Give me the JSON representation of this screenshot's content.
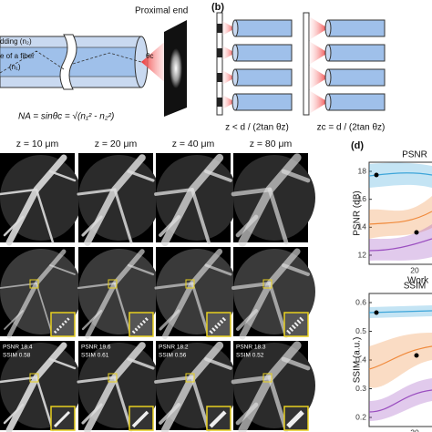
{
  "panel_a": {
    "top_label": "Proximal end",
    "cladding_label": "dding (n₂)",
    "core_label": "e of a fiber",
    "core_index": "(n₁)",
    "angle_label": "θc",
    "formula": "NA = sinθc = √(n₁² - n₂²)"
  },
  "panel_b": {
    "label": "(b)",
    "left_caption": "z < d / (2tan θz)",
    "right_caption": "zc = d / (2tan θz)"
  },
  "panel_c": {
    "columns": [
      "z = 10 μm",
      "z = 20 μm",
      "z = 40 μm",
      "z = 80 μm"
    ],
    "metrics": [
      {
        "psnr": "PSNR 18.4",
        "ssim": "SSIM 0.58"
      },
      {
        "psnr": "PSNR 19.6",
        "ssim": "SSIM 0.61"
      },
      {
        "psnr": "PSNR 18.2",
        "ssim": "SSIM 0.56"
      },
      {
        "psnr": "PSNR 18.3",
        "ssim": "SSIM 0.52"
      }
    ]
  },
  "panel_d": {
    "label": "(d)",
    "psnr": {
      "title": "PSNR",
      "ylabel": "PSNR (dB)",
      "yticks": [
        "18",
        "16",
        "14",
        "12"
      ],
      "xticks": [
        "20"
      ],
      "xlabel": "Work"
    },
    "ssim": {
      "title": "SSIM",
      "ylabel": "SSIM (a.u.)",
      "yticks": [
        "0.6",
        "0.5",
        "0.4",
        "0.3",
        "0.2"
      ],
      "xticks": [
        "20"
      ],
      "xlabel": "Work"
    }
  }
}
